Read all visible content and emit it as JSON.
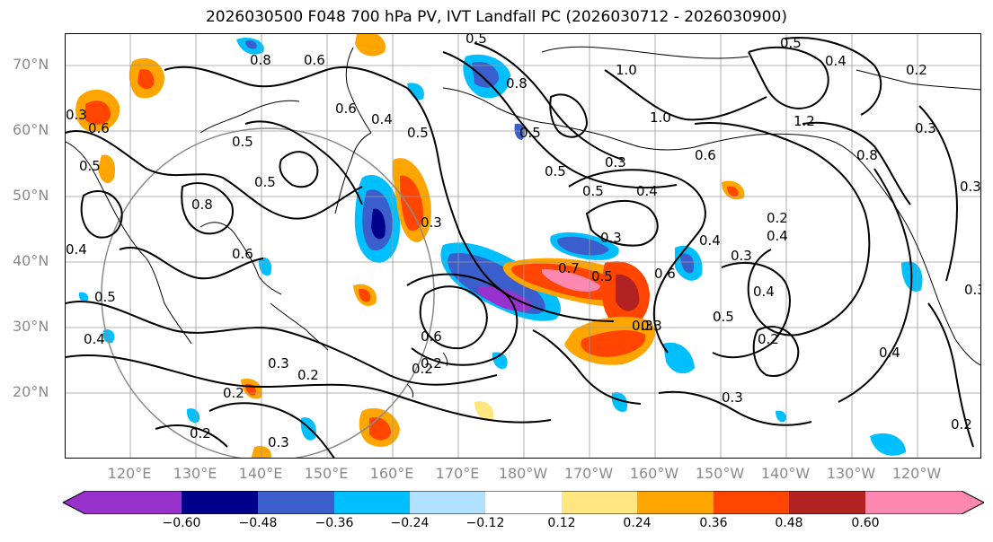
{
  "title": "2026030500 F048 700 hPa PV, IVT Landfall PC (2026030712 - 2026030900)",
  "lat_labels": [
    "70°N",
    "60°N",
    "50°N",
    "40°N",
    "30°N",
    "20°N"
  ],
  "lon_labels": [
    "120°E",
    "130°E",
    "140°E",
    "150°E",
    "160°E",
    "170°E",
    "180°W",
    "170°W",
    "160°W",
    "150°W",
    "140°W",
    "130°W",
    "120°W"
  ],
  "colorbar": {
    "ticks": [
      "−0.60",
      "−0.48",
      "−0.36",
      "−0.24",
      "−0.12",
      "0.12",
      "0.24",
      "0.36",
      "0.48",
      "0.60"
    ],
    "colors": [
      "#9932cc",
      "#00008b",
      "#3a5fcd",
      "#00bfff",
      "#b0e2ff",
      "#ffffff",
      "#ffe680",
      "#ffa500",
      "#ff4500",
      "#b22222",
      "#ff88b0"
    ]
  },
  "contour_labels": [
    "0.5",
    "0.6",
    "0.8",
    "0.8",
    "0.6",
    "0.4",
    "0.5",
    "1.0",
    "0.4",
    "0.2",
    "0.5",
    "1.0",
    "1.2",
    "0.3",
    "0.6",
    "0.5",
    "0.5",
    "0.3",
    "0.5",
    "0.4",
    "0.3",
    "0.2",
    "0.8",
    "0.3",
    "0.7",
    "0.6",
    "0.4",
    "0.3",
    "0.4",
    "0.5",
    "0.6",
    "0.3",
    "0.2",
    "0.2",
    "0.3",
    "0.2",
    "0.3",
    "0.4",
    "0.2",
    "0.2",
    "0.4",
    "0.5",
    "0.5",
    "0.6",
    "0.8",
    "0.4",
    "0.5",
    "0.3",
    "0.2",
    "0.4",
    "0.3",
    "0.3",
    "0.5",
    "0.3",
    "0.5",
    "0.6",
    "0.3",
    "0.2"
  ]
}
